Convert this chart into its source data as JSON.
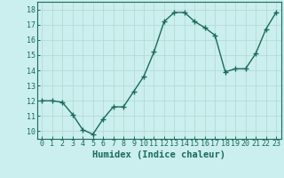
{
  "x": [
    0,
    1,
    2,
    3,
    4,
    5,
    6,
    7,
    8,
    9,
    10,
    11,
    12,
    13,
    14,
    15,
    16,
    17,
    18,
    19,
    20,
    21,
    22,
    23
  ],
  "y": [
    12.0,
    12.0,
    11.9,
    11.1,
    10.1,
    9.8,
    10.8,
    11.6,
    11.6,
    12.6,
    13.6,
    15.2,
    17.2,
    17.8,
    17.8,
    17.2,
    16.8,
    16.3,
    13.9,
    14.1,
    14.1,
    15.1,
    16.7,
    17.8
  ],
  "line_color": "#1a6b5a",
  "marker": "+",
  "markersize": 4,
  "linewidth": 1.0,
  "bg_color": "#cbeeee",
  "grid_color": "#b0d8d0",
  "xlabel": "Humidex (Indice chaleur)",
  "xlim": [
    -0.5,
    23.5
  ],
  "ylim": [
    9.5,
    18.5
  ],
  "yticks": [
    10,
    11,
    12,
    13,
    14,
    15,
    16,
    17,
    18
  ],
  "xticks": [
    0,
    1,
    2,
    3,
    4,
    5,
    6,
    7,
    8,
    9,
    10,
    11,
    12,
    13,
    14,
    15,
    16,
    17,
    18,
    19,
    20,
    21,
    22,
    23
  ],
  "tick_color": "#1a6b5a",
  "label_color": "#1a6b5a",
  "xlabel_fontsize": 7.5,
  "tick_fontsize": 6.0
}
